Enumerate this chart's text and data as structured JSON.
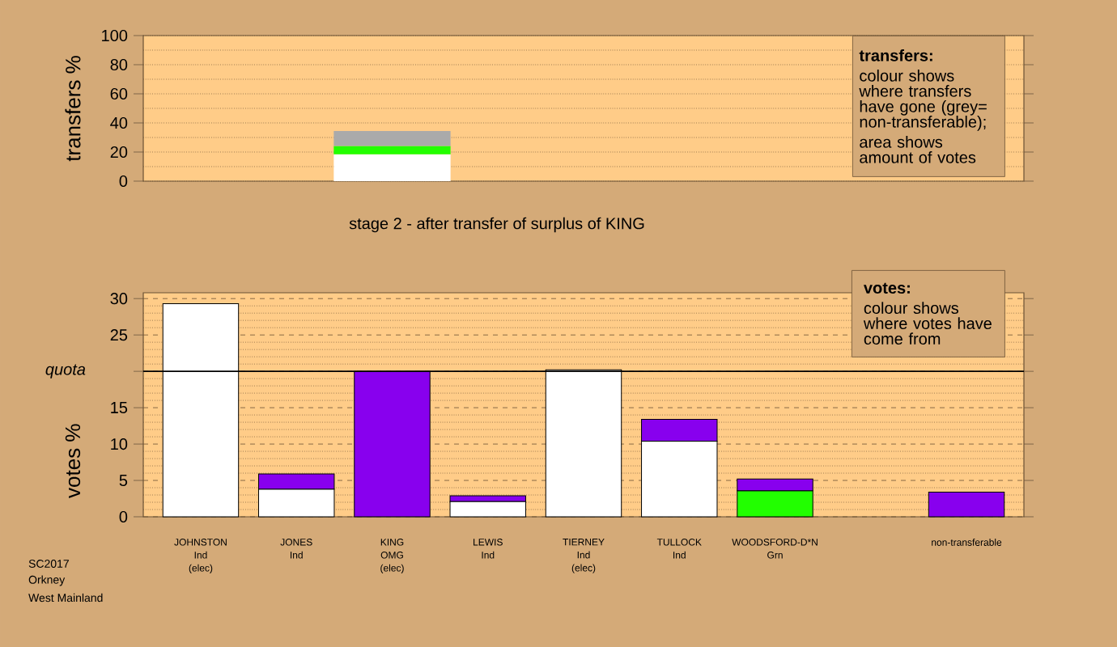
{
  "chart_data": [
    {
      "type": "bar",
      "stacked": true,
      "ylabel": "transfers %",
      "categories": [
        null,
        null,
        null,
        null,
        null,
        null,
        null,
        null,
        null
      ],
      "series": [
        {
          "color": "#ffffff",
          "values": [
            null,
            null,
            18.5,
            null,
            null,
            null,
            null,
            null,
            null
          ]
        },
        {
          "color": "#22ff00",
          "values": [
            null,
            null,
            5.6,
            null,
            null,
            null,
            null,
            null,
            null
          ]
        },
        {
          "color": "#aaaaaa",
          "values": [
            null,
            null,
            10.3,
            null,
            null,
            null,
            null,
            null,
            null
          ]
        }
      ],
      "ylim": [
        0,
        100
      ],
      "yticks": [
        0,
        20,
        40,
        60,
        80,
        100
      ],
      "grid": "y",
      "tick_labels": "y",
      "annotations": [
        "transfers:",
        "colour shows where transfers have gone (grey= non-transferable);",
        "area shows amount of votes"
      ]
    },
    {
      "type": "bar",
      "stacked": true,
      "title": "stage 2 - after transfer of surplus of KING",
      "ylabel": "votes %",
      "categories": [
        "JOHNSTON Ind (elec)",
        "JONES Ind",
        "KING OMG (elec)",
        "LEWIS Ind",
        "TIERNEY Ind (elec)",
        "TULLOCK Ind",
        "WOODSFORD-D*N Grn",
        null,
        "non-transferable"
      ],
      "series": [
        {
          "color": "#ffffff",
          "values": [
            29.3,
            3.8,
            null,
            2.1,
            20.2,
            10.4,
            null,
            null,
            null
          ]
        },
        {
          "color": "#22ff00",
          "values": [
            null,
            null,
            null,
            null,
            null,
            null,
            3.6,
            null,
            null
          ]
        },
        {
          "color": "#8800ee",
          "values": [
            null,
            2.1,
            20.0,
            0.8,
            null,
            3.0,
            1.6,
            null,
            3.4
          ]
        }
      ],
      "ylim": [
        0,
        30.8
      ],
      "yticks": [
        0,
        5,
        10,
        15,
        {
          "value": 20,
          "label": null
        },
        25,
        30
      ],
      "grid": "y",
      "ref_lines": [
        {
          "axis": "y",
          "value": 20,
          "label": "quota"
        }
      ],
      "annotations": [
        "votes:",
        "colour shows where votes have come from",
        "SC2017",
        "Orkney",
        "West Mainland"
      ]
    }
  ]
}
